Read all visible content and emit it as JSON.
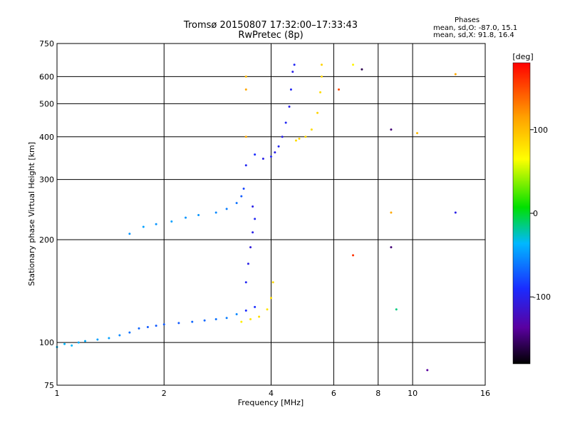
{
  "chart_data": {
    "type": "scatter",
    "title": "Tromsø 20150807 17:32:00–17:33:43",
    "subtitle": "RwPretec (8p)",
    "xlabel": "Frequency [MHz]",
    "ylabel": "Stationary phase Virtual Height [km]",
    "x_scale": "log2",
    "y_scale": "log",
    "xlim": [
      1,
      16
    ],
    "ylim": [
      75,
      750
    ],
    "x_ticks": [
      1,
      2,
      4,
      6,
      8,
      10,
      16
    ],
    "y_ticks": [
      75,
      100,
      200,
      300,
      400,
      500,
      600,
      750
    ],
    "grid": true,
    "phase_stats": {
      "heading": "Phases",
      "line_o": "mean, sd,O: -87.0, 15.1",
      "line_x": "mean, sd,X:  91.8, 16.4"
    },
    "colorbar": {
      "label": "[deg]",
      "ticks": [
        100,
        0,
        -100
      ],
      "range": [
        -180,
        180
      ]
    },
    "series": [
      {
        "points": [
          {
            "f": 1.0,
            "h": 97,
            "p": -40
          },
          {
            "f": 1.05,
            "h": 99,
            "p": -40
          },
          {
            "f": 1.1,
            "h": 98,
            "p": -40
          },
          {
            "f": 1.15,
            "h": 100,
            "p": -45
          },
          {
            "f": 1.2,
            "h": 101,
            "p": -45
          },
          {
            "f": 1.3,
            "h": 102,
            "p": -50
          },
          {
            "f": 1.4,
            "h": 103,
            "p": -50
          },
          {
            "f": 1.5,
            "h": 105,
            "p": -60
          },
          {
            "f": 1.6,
            "h": 107,
            "p": -70
          },
          {
            "f": 1.7,
            "h": 110,
            "p": -75
          },
          {
            "f": 1.8,
            "h": 111,
            "p": -80
          },
          {
            "f": 1.9,
            "h": 112,
            "p": -80
          },
          {
            "f": 2.0,
            "h": 113,
            "p": -80
          },
          {
            "f": 2.2,
            "h": 114,
            "p": -80
          },
          {
            "f": 2.4,
            "h": 115,
            "p": -75
          },
          {
            "f": 2.6,
            "h": 116,
            "p": -75
          },
          {
            "f": 2.8,
            "h": 117,
            "p": -70
          },
          {
            "f": 3.0,
            "h": 118,
            "p": -65
          },
          {
            "f": 3.2,
            "h": 121,
            "p": -60
          },
          {
            "f": 3.4,
            "h": 124,
            "p": -100
          },
          {
            "f": 3.6,
            "h": 127,
            "p": -100
          },
          {
            "f": 1.6,
            "h": 208,
            "p": -55
          },
          {
            "f": 1.75,
            "h": 218,
            "p": -50
          },
          {
            "f": 1.9,
            "h": 222,
            "p": -55
          },
          {
            "f": 2.1,
            "h": 226,
            "p": -50
          },
          {
            "f": 2.3,
            "h": 232,
            "p": -55
          },
          {
            "f": 2.5,
            "h": 236,
            "p": -55
          },
          {
            "f": 2.8,
            "h": 240,
            "p": -60
          },
          {
            "f": 3.0,
            "h": 246,
            "p": -65
          },
          {
            "f": 3.2,
            "h": 256,
            "p": -70
          },
          {
            "f": 3.3,
            "h": 268,
            "p": -80
          },
          {
            "f": 3.35,
            "h": 282,
            "p": -90
          },
          {
            "f": 3.4,
            "h": 150,
            "p": -105
          },
          {
            "f": 3.45,
            "h": 170,
            "p": -110
          },
          {
            "f": 3.5,
            "h": 190,
            "p": -115
          },
          {
            "f": 3.55,
            "h": 210,
            "p": -110
          },
          {
            "f": 3.6,
            "h": 230,
            "p": -105
          },
          {
            "f": 3.55,
            "h": 250,
            "p": -110
          },
          {
            "f": 3.4,
            "h": 330,
            "p": -105
          },
          {
            "f": 3.6,
            "h": 355,
            "p": -100
          },
          {
            "f": 3.8,
            "h": 345,
            "p": -110
          },
          {
            "f": 4.0,
            "h": 350,
            "p": -105
          },
          {
            "f": 4.1,
            "h": 360,
            "p": -110
          },
          {
            "f": 4.2,
            "h": 375,
            "p": -105
          },
          {
            "f": 4.3,
            "h": 400,
            "p": -110
          },
          {
            "f": 4.4,
            "h": 440,
            "p": -105
          },
          {
            "f": 4.5,
            "h": 490,
            "p": -110
          },
          {
            "f": 4.55,
            "h": 550,
            "p": -105
          },
          {
            "f": 4.6,
            "h": 620,
            "p": -110
          },
          {
            "f": 4.65,
            "h": 650,
            "p": -105
          },
          {
            "f": 3.3,
            "h": 115,
            "p": 70
          },
          {
            "f": 3.5,
            "h": 117,
            "p": 75
          },
          {
            "f": 3.7,
            "h": 119,
            "p": 80
          },
          {
            "f": 3.9,
            "h": 125,
            "p": 75
          },
          {
            "f": 4.0,
            "h": 135,
            "p": 80
          },
          {
            "f": 4.05,
            "h": 150,
            "p": 85
          },
          {
            "f": 4.7,
            "h": 390,
            "p": 80
          },
          {
            "f": 4.8,
            "h": 395,
            "p": 85
          },
          {
            "f": 5.0,
            "h": 400,
            "p": 85
          },
          {
            "f": 5.2,
            "h": 420,
            "p": 80
          },
          {
            "f": 5.4,
            "h": 470,
            "p": 85
          },
          {
            "f": 5.5,
            "h": 540,
            "p": 80
          },
          {
            "f": 5.55,
            "h": 600,
            "p": 85
          },
          {
            "f": 5.55,
            "h": 650,
            "p": 85
          },
          {
            "f": 6.8,
            "h": 650,
            "p": 65
          },
          {
            "f": 7.2,
            "h": 630,
            "p": -160
          },
          {
            "f": 6.2,
            "h": 550,
            "p": 150
          },
          {
            "f": 8.7,
            "h": 420,
            "p": -150
          },
          {
            "f": 10.3,
            "h": 410,
            "p": 100
          },
          {
            "f": 8.7,
            "h": 240,
            "p": 110
          },
          {
            "f": 8.7,
            "h": 190,
            "p": -150
          },
          {
            "f": 6.8,
            "h": 180,
            "p": 160
          },
          {
            "f": 9.0,
            "h": 125,
            "p": -20
          },
          {
            "f": 11.0,
            "h": 83,
            "p": -140
          },
          {
            "f": 13.2,
            "h": 610,
            "p": 110
          },
          {
            "f": 13.2,
            "h": 240,
            "p": -110
          },
          {
            "f": 3.4,
            "h": 600,
            "p": 100
          },
          {
            "f": 3.4,
            "h": 550,
            "p": 110
          },
          {
            "f": 3.4,
            "h": 400,
            "p": 110
          }
        ]
      }
    ]
  }
}
